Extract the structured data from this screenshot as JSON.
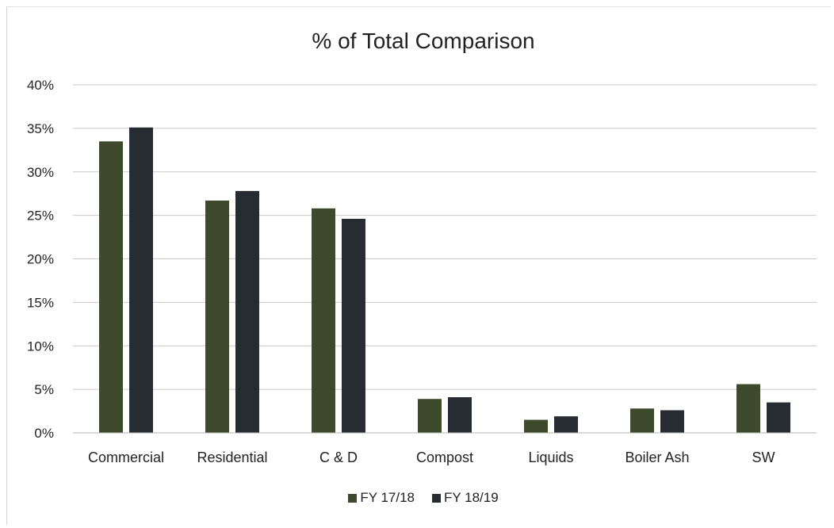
{
  "chart_data": {
    "type": "bar",
    "title": "% of Total Comparison",
    "categories": [
      "Commercial",
      "Residential",
      "C & D",
      "Compost",
      "Liquids",
      "Boiler Ash",
      "SW"
    ],
    "series": [
      {
        "name": "FY 17/18",
        "color": "#3d4a2c",
        "values": [
          33.5,
          26.7,
          25.8,
          3.9,
          1.5,
          2.8,
          5.6
        ]
      },
      {
        "name": "FY 18/19",
        "color": "#272c33",
        "values": [
          35.1,
          27.8,
          24.6,
          4.1,
          1.9,
          2.6,
          3.5
        ]
      }
    ],
    "ylim": [
      0,
      40
    ],
    "yticks": [
      0,
      5,
      10,
      15,
      20,
      25,
      30,
      35,
      40
    ],
    "ytick_labels": [
      "0%",
      "5%",
      "10%",
      "15%",
      "20%",
      "25%",
      "30%",
      "35%",
      "40%"
    ],
    "xlabel": "",
    "ylabel": "",
    "grid": true,
    "legend_position": "bottom"
  }
}
